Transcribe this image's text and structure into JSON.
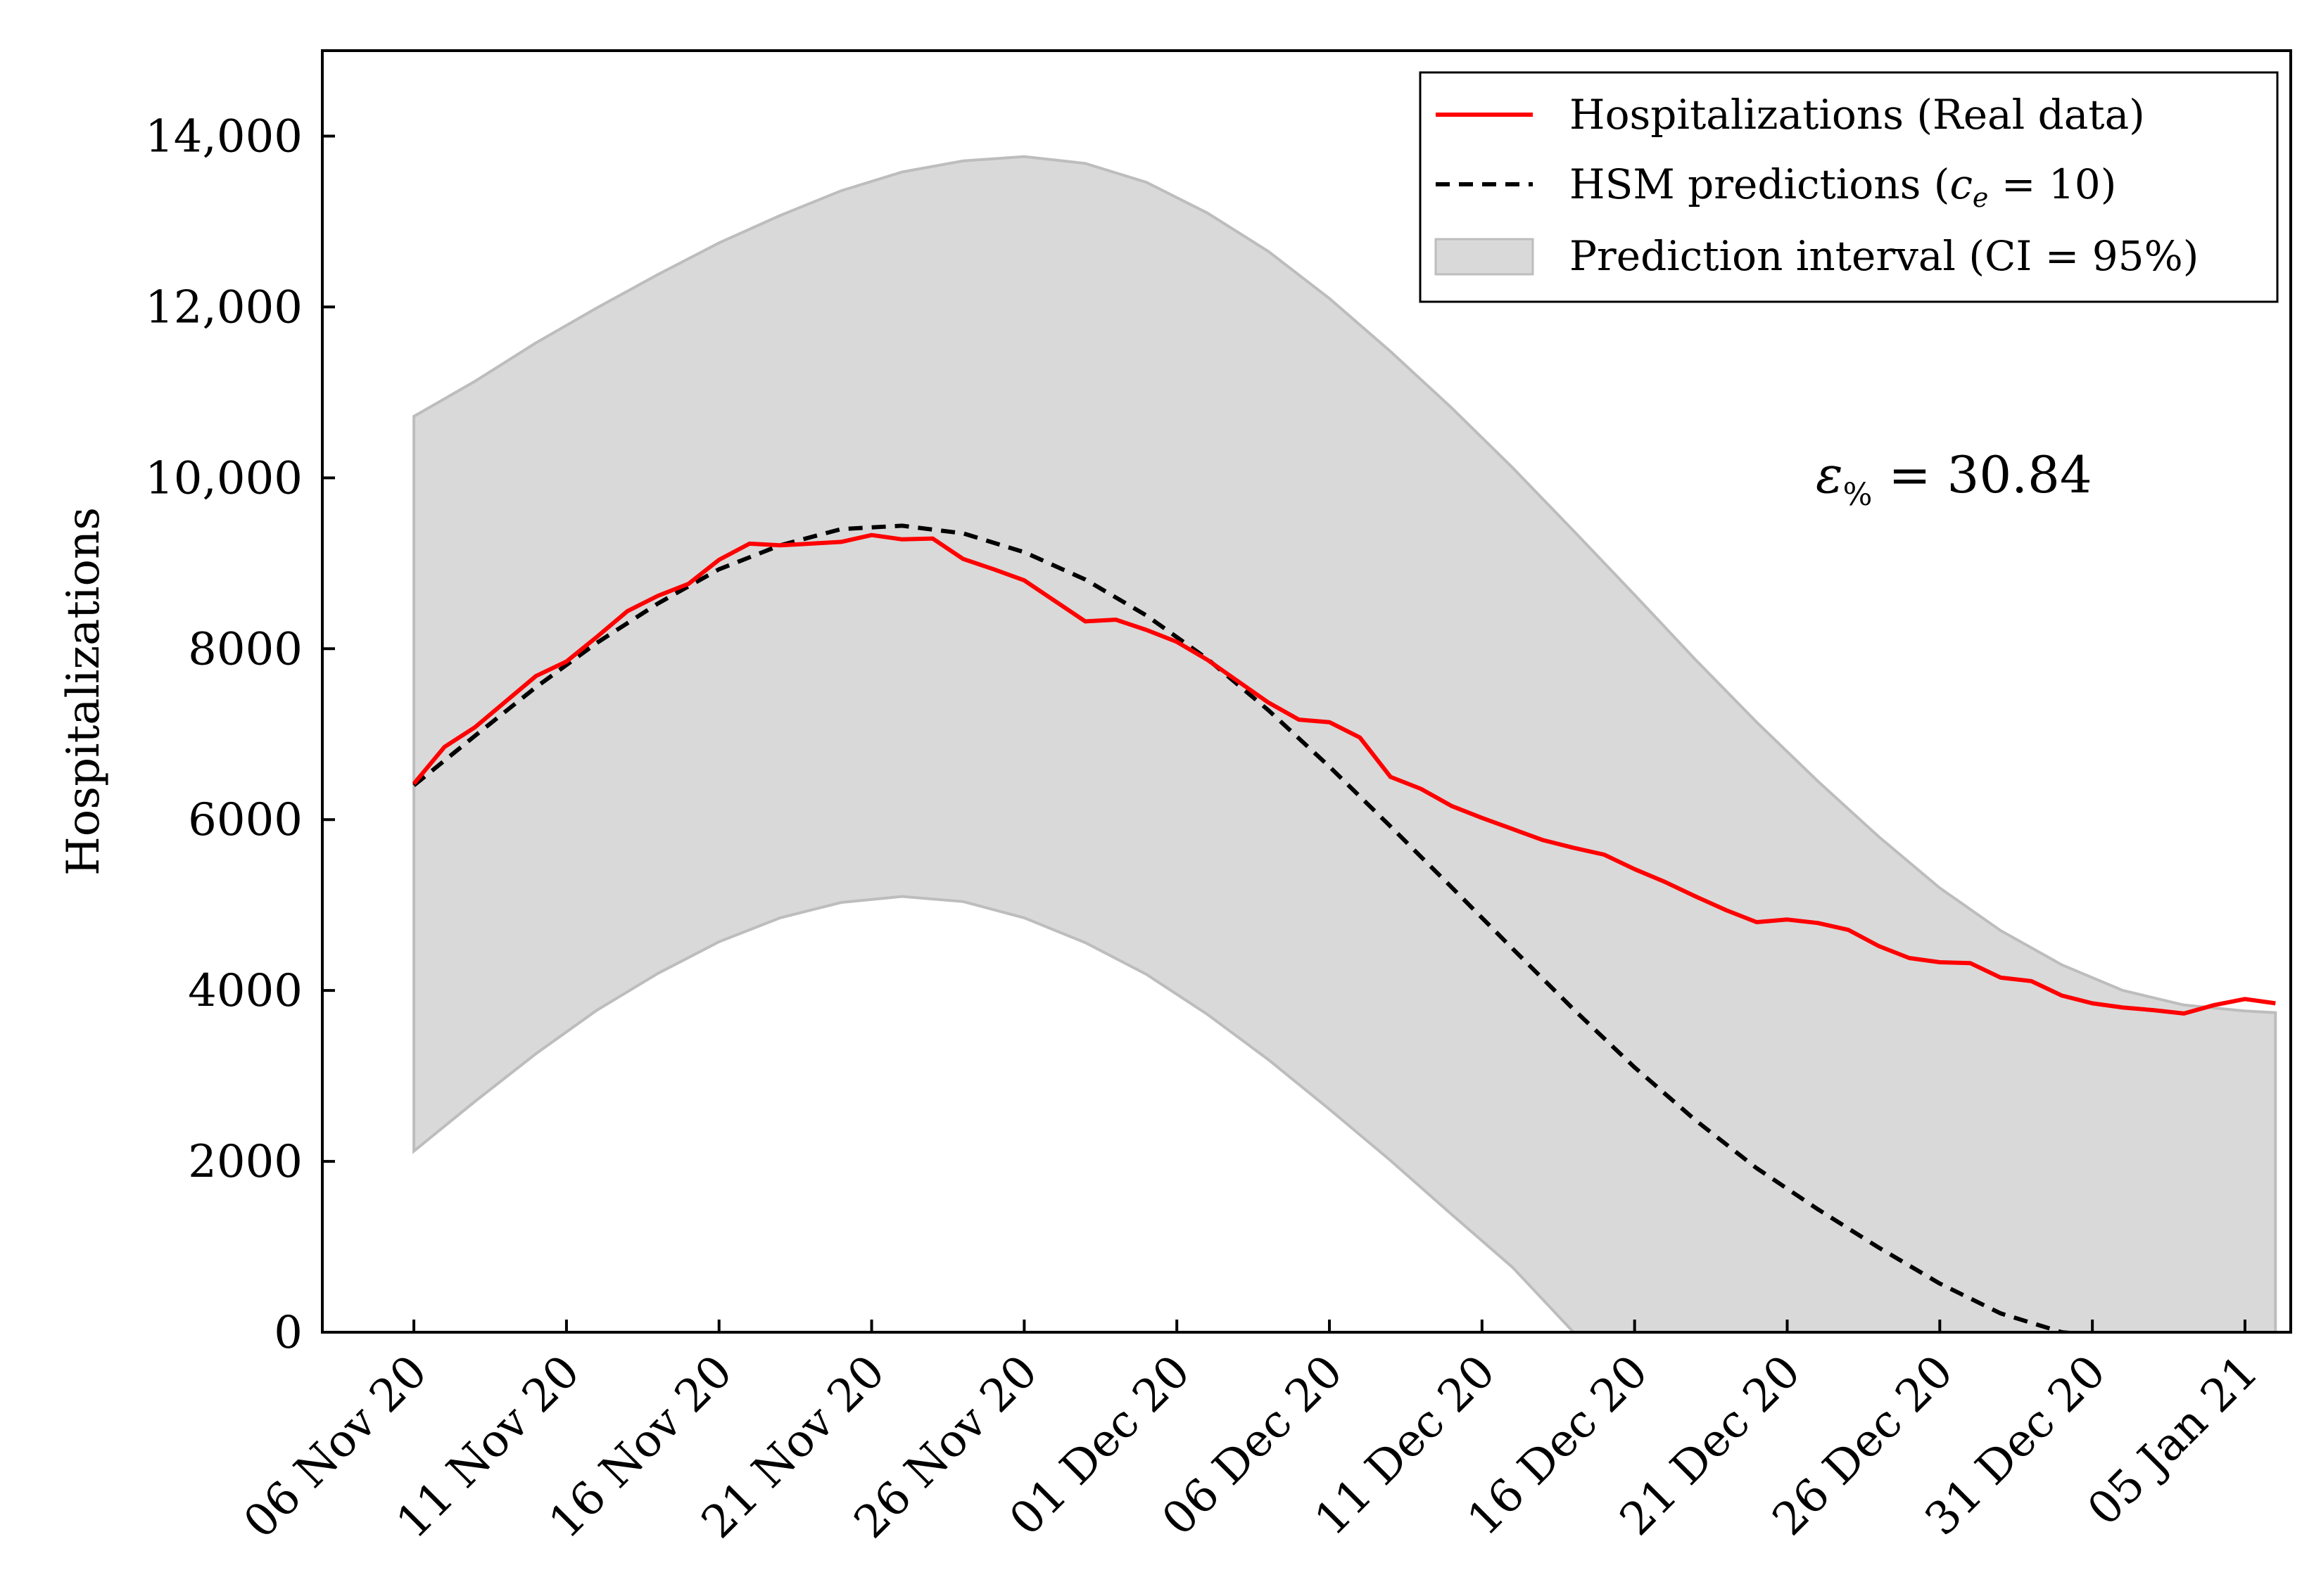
{
  "chart_data": {
    "type": "line",
    "xlabel": "",
    "ylabel": "Hospitalizations",
    "ylim": [
      0,
      15000
    ],
    "xlim": [
      -3,
      61.5
    ],
    "y_ticks": [
      {
        "value": 0,
        "label": "0"
      },
      {
        "value": 2000,
        "label": "2000"
      },
      {
        "value": 4000,
        "label": "4000"
      },
      {
        "value": 6000,
        "label": "6000"
      },
      {
        "value": 8000,
        "label": "8000"
      },
      {
        "value": 10000,
        "label": "10,000"
      },
      {
        "value": 12000,
        "label": "12,000"
      },
      {
        "value": 14000,
        "label": "14,000"
      }
    ],
    "x_ticks": [
      {
        "day": 0,
        "label": "06 Nov 20"
      },
      {
        "day": 5,
        "label": "11 Nov 20"
      },
      {
        "day": 10,
        "label": "16 Nov 20"
      },
      {
        "day": 15,
        "label": "21 Nov 20"
      },
      {
        "day": 20,
        "label": "26 Nov 20"
      },
      {
        "day": 25,
        "label": "01 Dec 20"
      },
      {
        "day": 30,
        "label": "06 Dec 20"
      },
      {
        "day": 35,
        "label": "11 Dec 20"
      },
      {
        "day": 40,
        "label": "16 Dec 20"
      },
      {
        "day": 45,
        "label": "21 Dec 20"
      },
      {
        "day": 50,
        "label": "26 Dec 20"
      },
      {
        "day": 55,
        "label": "31 Dec 20"
      },
      {
        "day": 60,
        "label": "05 Jan 21"
      }
    ],
    "legend_position": "top-right",
    "legend": {
      "real": "Hospitalizations (Real data)",
      "pred_prefix": "HSM predictions (",
      "pred_var": "c",
      "pred_sub": "e",
      "pred_suffix": " = 10)",
      "band": "Prediction interval (CI = 95%)"
    },
    "annotation": {
      "symbol": "ε",
      "subscript": "%",
      "text": " = 30.84"
    },
    "colors": {
      "real": "#ff0000",
      "pred": "#000000",
      "band_fill": "#d9d9d9",
      "band_edge": "#bdbdbd"
    },
    "series": [
      {
        "name": "Hospitalizations (Real data)",
        "style": "solid",
        "x": [
          0,
          1,
          2,
          3,
          4,
          5,
          6,
          7,
          8,
          9,
          10,
          11,
          12,
          13,
          14,
          15,
          16,
          17,
          18,
          19,
          20,
          21,
          22,
          23,
          24,
          25,
          26,
          27,
          28,
          29,
          30,
          31,
          32,
          33,
          34,
          35,
          36,
          37,
          38,
          39,
          40,
          41,
          42,
          43,
          44,
          45,
          46,
          47,
          48,
          49,
          50,
          51,
          52,
          53,
          54,
          55,
          56,
          57,
          58,
          59,
          60,
          61
        ],
        "values": [
          6420,
          6850,
          7080,
          7380,
          7680,
          7850,
          8140,
          8440,
          8620,
          8760,
          9040,
          9230,
          9210,
          9230,
          9250,
          9330,
          9280,
          9290,
          9050,
          8930,
          8800,
          8560,
          8320,
          8340,
          8220,
          8080,
          7870,
          7620,
          7370,
          7170,
          7140,
          6960,
          6500,
          6360,
          6160,
          6020,
          5890,
          5760,
          5670,
          5590,
          5420,
          5270,
          5100,
          4940,
          4800,
          4830,
          4790,
          4710,
          4520,
          4380,
          4330,
          4320,
          4150,
          4110,
          3940,
          3850,
          3800,
          3770,
          3730,
          3830,
          3900,
          3850
        ]
      },
      {
        "name": "HSM predictions (ce = 10)",
        "style": "dashed",
        "x": [
          0,
          2,
          4,
          6,
          8,
          10,
          12,
          14,
          16,
          18,
          20,
          22,
          24,
          26,
          28,
          30,
          32,
          34,
          36,
          38,
          40,
          42,
          44,
          46,
          48,
          50,
          52,
          54,
          54.9
        ],
        "values": [
          6400,
          6980,
          7550,
          8070,
          8530,
          8930,
          9210,
          9400,
          9440,
          9350,
          9130,
          8810,
          8390,
          7880,
          7280,
          6620,
          5920,
          5210,
          4490,
          3780,
          3100,
          2480,
          1920,
          1440,
          990,
          570,
          220,
          0,
          -30
        ]
      },
      {
        "name": "Prediction interval (CI = 95%)",
        "style": "band",
        "x": [
          0,
          2,
          4,
          6,
          8,
          10,
          12,
          14,
          16,
          18,
          20,
          22,
          24,
          26,
          28,
          30,
          32,
          34,
          36,
          38,
          40,
          42,
          44,
          46,
          48,
          50,
          52,
          54,
          56,
          58,
          60,
          61
        ],
        "upper": [
          10720,
          11130,
          11580,
          11990,
          12380,
          12750,
          13070,
          13360,
          13580,
          13710,
          13760,
          13680,
          13460,
          13100,
          12650,
          12100,
          11480,
          10820,
          10120,
          9380,
          8630,
          7870,
          7140,
          6450,
          5800,
          5200,
          4700,
          4300,
          4000,
          3830,
          3760,
          3740
        ],
        "lower": [
          2120,
          2700,
          3260,
          3770,
          4200,
          4570,
          4850,
          5030,
          5100,
          5040,
          4850,
          4560,
          4190,
          3720,
          3190,
          2610,
          2010,
          1380,
          760,
          0,
          0,
          0,
          0,
          0,
          0,
          0,
          0,
          0,
          0,
          0,
          0,
          0
        ]
      }
    ]
  }
}
